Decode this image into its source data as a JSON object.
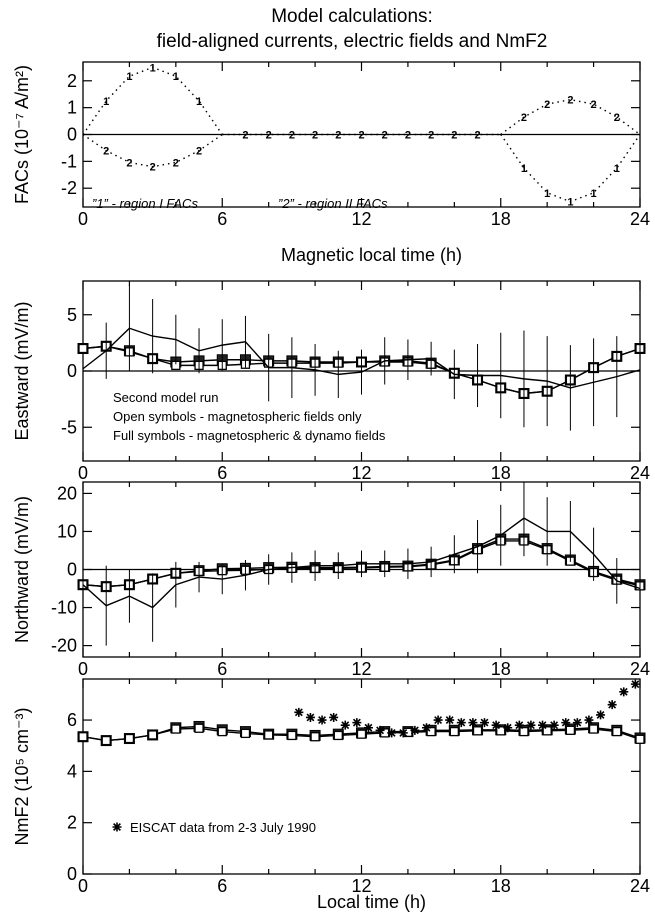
{
  "figure_title": [
    "Model calculations:",
    "field-aligned currents, electric fields and NmF2"
  ],
  "chart_data": [
    {
      "type": "line",
      "id": "facs",
      "ylabel": "FACs (10⁻⁷ A/m²)",
      "xlabel": "Magnetic local time (h)",
      "xlim": [
        0,
        24
      ],
      "ylim": [
        -2.7,
        2.7
      ],
      "xticks": [
        "0",
        "6",
        "12",
        "18",
        "24"
      ],
      "yticks": [
        "-2",
        "-1",
        "0",
        "1",
        "2"
      ],
      "zero_line": true,
      "annotations": [
        "”1” - region I FACs",
        "”2” - region II FACs"
      ],
      "series": [
        {
          "marker": "1",
          "x": [
            0,
            1,
            2,
            3,
            4,
            5,
            6
          ],
          "y": [
            0,
            1.25,
            2.17,
            2.5,
            2.17,
            1.25,
            0
          ]
        },
        {
          "marker": "2",
          "x": [
            0,
            1,
            2,
            3,
            4,
            5,
            6
          ],
          "y": [
            0,
            -0.6,
            -1.04,
            -1.2,
            -1.04,
            -0.6,
            0
          ]
        },
        {
          "marker": "2",
          "x": [
            6,
            7,
            8,
            9,
            10,
            11,
            12,
            13,
            14,
            15,
            16,
            17,
            18
          ],
          "y": [
            0,
            0,
            0,
            0,
            0,
            0,
            0,
            0,
            0,
            0,
            0,
            0,
            0
          ]
        },
        {
          "marker": "2",
          "x": [
            18,
            19,
            20,
            21,
            22,
            23,
            24
          ],
          "y": [
            0,
            0.65,
            1.13,
            1.3,
            1.13,
            0.65,
            0
          ]
        },
        {
          "marker": "1",
          "x": [
            18,
            19,
            20,
            21,
            22,
            23,
            24
          ],
          "y": [
            0,
            -1.25,
            -2.17,
            -2.5,
            -2.17,
            -1.25,
            0
          ]
        }
      ]
    },
    {
      "type": "line",
      "id": "eastward",
      "ylabel": "Eastward (mV/m)",
      "xlim": [
        0,
        24
      ],
      "ylim": [
        -8,
        8
      ],
      "xticks": [
        "0",
        "6",
        "12",
        "18",
        "24"
      ],
      "yticks": [
        "-5",
        "0",
        "5"
      ],
      "zero_line": true,
      "annotations": [
        "Second model run",
        "Open symbols - magnetospheric fields only",
        "Full symbols - magnetospheric & dynamo fields"
      ],
      "x": [
        0,
        1,
        2,
        3,
        4,
        5,
        6,
        7,
        8,
        9,
        10,
        11,
        12,
        13,
        14,
        15,
        16,
        17,
        18,
        19,
        20,
        21,
        22,
        23,
        24
      ],
      "series": [
        {
          "name": "Full symbols - magnetospheric & dynamo fields",
          "marker": "filled-square",
          "y": [
            2,
            2.2,
            1.8,
            1.1,
            0.8,
            0.9,
            1.0,
            1.0,
            0.9,
            0.9,
            0.8,
            0.8,
            0.8,
            0.9,
            0.9,
            0.7,
            -0.2,
            -0.8,
            -1.5,
            -2.0,
            -1.8,
            -0.8,
            0.3,
            1.3,
            2.0
          ]
        },
        {
          "name": "Open symbols - magnetospheric fields only",
          "marker": "open-square",
          "y": [
            2,
            2.2,
            1.7,
            1.1,
            0.5,
            0.5,
            0.5,
            0.6,
            0.7,
            0.7,
            0.7,
            0.7,
            0.8,
            0.8,
            0.8,
            0.6,
            -0.2,
            -0.8,
            -1.5,
            -2.0,
            -1.8,
            -0.8,
            0.3,
            1.3,
            2.0
          ]
        },
        {
          "marker": "none",
          "y": [
            0.2,
            1.8,
            3.8,
            3.1,
            2.8,
            1.8,
            2.3,
            2.6,
            0.3,
            0.3,
            0.1,
            -0.3,
            -0.1,
            0.9,
            1.0,
            1.1,
            -0.3,
            -0.4,
            -0.4,
            -0.7,
            -0.9,
            -1.5,
            -1.0,
            -0.5,
            0.1
          ],
          "err": [
            0.5,
            2.5,
            3.8,
            3.3,
            2.2,
            2.0,
            2.3,
            2.3,
            3.0,
            2.7,
            2.3,
            2.1,
            2.0,
            2.1,
            1.8,
            1.5,
            2.2,
            2.8,
            3.8,
            4.3,
            4.0,
            3.8,
            3.9,
            3.6,
            4.0
          ]
        }
      ]
    },
    {
      "type": "line",
      "id": "northward",
      "ylabel": "Northward (mV/m)",
      "xlim": [
        0,
        24
      ],
      "ylim": [
        -23,
        23
      ],
      "xticks": [
        "0",
        "6",
        "12",
        "18",
        "24"
      ],
      "yticks": [
        "-20",
        "-10",
        "0",
        "10",
        "20"
      ],
      "zero_line": true,
      "x": [
        0,
        1,
        2,
        3,
        4,
        5,
        6,
        7,
        8,
        9,
        10,
        11,
        12,
        13,
        14,
        15,
        16,
        17,
        18,
        19,
        20,
        21,
        22,
        23,
        24
      ],
      "series": [
        {
          "marker": "filled-square",
          "y": [
            -4,
            -4.5,
            -4,
            -2.5,
            -1,
            -0.3,
            0.2,
            0.3,
            0.5,
            0.6,
            0.5,
            0.5,
            0.6,
            0.8,
            0.9,
            1.4,
            2.5,
            5.5,
            8,
            8,
            5.5,
            2.5,
            -0.5,
            -2.5,
            -4
          ]
        },
        {
          "marker": "open-square",
          "y": [
            -4,
            -4.5,
            -4,
            -2.5,
            -1,
            -0.5,
            -0.3,
            -0.2,
            0,
            0.3,
            0.3,
            0.3,
            0.4,
            0.6,
            0.7,
            1.2,
            2.3,
            5.2,
            7.5,
            7.5,
            5.2,
            2.2,
            -0.8,
            -2.8,
            -4.3
          ]
        },
        {
          "marker": "none",
          "y": [
            -4,
            -9.5,
            -7,
            -10,
            -4,
            -2,
            -2.5,
            -1.5,
            0,
            0.5,
            1,
            1,
            1.5,
            1.5,
            1.5,
            2,
            4,
            6,
            9,
            13.5,
            10,
            10,
            4,
            -3,
            -5
          ],
          "err": [
            4,
            10.5,
            7,
            9,
            6,
            4,
            4,
            4,
            4,
            4,
            4,
            3.5,
            3.5,
            3.5,
            4,
            4,
            5,
            7,
            8,
            10,
            9,
            8,
            7,
            6,
            6
          ]
        }
      ]
    },
    {
      "type": "line",
      "id": "nmf2",
      "ylabel": "NmF2 (10⁵ cm⁻³)",
      "xlabel": "Local time (h)",
      "xlim": [
        0,
        24
      ],
      "ylim": [
        0,
        7.6
      ],
      "xticks": [
        "0",
        "6",
        "12",
        "18",
        "24"
      ],
      "yticks": [
        "0",
        "2",
        "4",
        "6"
      ],
      "legend": "EISCAT data from 2-3 July 1990",
      "x": [
        0,
        1,
        2,
        3,
        4,
        5,
        6,
        7,
        8,
        9,
        10,
        11,
        12,
        13,
        14,
        15,
        16,
        17,
        18,
        19,
        20,
        21,
        22,
        23,
        24
      ],
      "series": [
        {
          "marker": "filled-square",
          "y": [
            5.35,
            5.2,
            5.28,
            5.42,
            5.7,
            5.75,
            5.62,
            5.55,
            5.45,
            5.45,
            5.4,
            5.45,
            5.5,
            5.55,
            5.55,
            5.6,
            5.6,
            5.62,
            5.62,
            5.6,
            5.62,
            5.65,
            5.7,
            5.6,
            5.3
          ]
        },
        {
          "marker": "open-square",
          "y": [
            5.35,
            5.2,
            5.28,
            5.42,
            5.65,
            5.68,
            5.55,
            5.48,
            5.42,
            5.4,
            5.35,
            5.4,
            5.45,
            5.5,
            5.52,
            5.55,
            5.55,
            5.58,
            5.58,
            5.55,
            5.58,
            5.6,
            5.65,
            5.55,
            5.25
          ]
        },
        {
          "name": "EISCAT data from 2-3 July 1990",
          "marker": "asterisk",
          "x": [
            9.3,
            9.8,
            10.3,
            10.8,
            11.3,
            11.8,
            12.3,
            12.8,
            13.3,
            13.8,
            14.3,
            14.8,
            15.3,
            15.8,
            16.3,
            16.8,
            17.3,
            17.8,
            18.3,
            18.8,
            19.3,
            19.8,
            20.3,
            20.8,
            21.3,
            21.8,
            22.3,
            22.8,
            23.3,
            23.8
          ],
          "y": [
            6.3,
            6.1,
            6.0,
            6.1,
            5.8,
            5.9,
            5.7,
            5.6,
            5.5,
            5.5,
            5.6,
            5.7,
            6.0,
            6.0,
            5.9,
            5.9,
            5.9,
            5.8,
            5.7,
            5.8,
            5.8,
            5.8,
            5.8,
            5.9,
            5.9,
            6.0,
            6.2,
            6.6,
            7.1,
            7.4
          ]
        }
      ]
    }
  ]
}
